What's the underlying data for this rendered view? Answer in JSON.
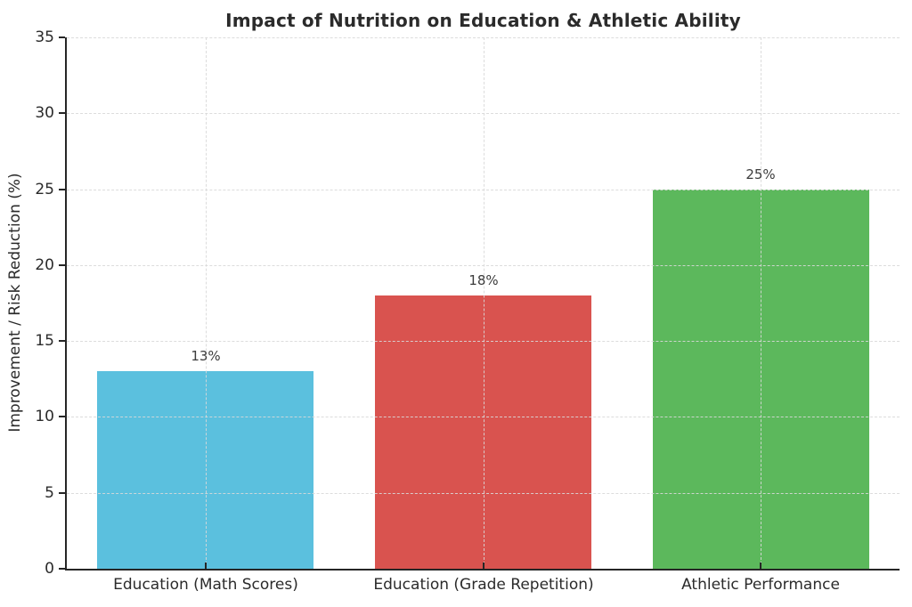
{
  "chart_data": {
    "type": "bar",
    "title": "Impact of Nutrition on Education & Athletic Ability",
    "xlabel": "",
    "ylabel": "Improvement / Risk Reduction (%)",
    "categories": [
      "Education (Math Scores)",
      "Education (Grade Repetition)",
      "Athletic Performance"
    ],
    "values": [
      13,
      18,
      25
    ],
    "value_labels": [
      "13%",
      "18%",
      "25%"
    ],
    "bar_colors": [
      "#5BC0DE",
      "#D9534F",
      "#5CB85C"
    ],
    "ylim": [
      0,
      35
    ],
    "yticks": [
      0,
      5,
      10,
      15,
      20,
      25,
      30,
      35
    ],
    "grid": "dashed light-gray gridlines on both axes, drawn above bars",
    "legend": "none",
    "axis_color": "#262626",
    "grid_color": "#d9d9d9",
    "title_color": "#2b2b2b",
    "value_label_color": "#3c3c3c"
  }
}
